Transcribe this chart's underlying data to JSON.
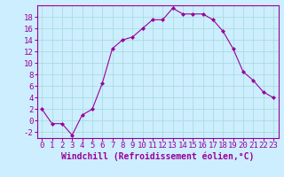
{
  "x": [
    0,
    1,
    2,
    3,
    4,
    5,
    6,
    7,
    8,
    9,
    10,
    11,
    12,
    13,
    14,
    15,
    16,
    17,
    18,
    19,
    20,
    21,
    22,
    23
  ],
  "y": [
    2,
    -0.5,
    -0.5,
    -2.5,
    1,
    2,
    6.5,
    12.5,
    14,
    14.5,
    16,
    17.5,
    17.5,
    19.5,
    18.5,
    18.5,
    18.5,
    17.5,
    15.5,
    12.5,
    8.5,
    7,
    5,
    4
  ],
  "line_color": "#990099",
  "marker": "D",
  "marker_size": 2,
  "bg_color": "#cceeff",
  "grid_color": "#aadddd",
  "xlabel": "Windchill (Refroidissement éolien,°C)",
  "xlabel_color": "#990099",
  "tick_color": "#990099",
  "ylim": [
    -3,
    20
  ],
  "xlim": [
    -0.5,
    23.5
  ],
  "yticks": [
    -2,
    0,
    2,
    4,
    6,
    8,
    10,
    12,
    14,
    16,
    18
  ],
  "xticks": [
    0,
    1,
    2,
    3,
    4,
    5,
    6,
    7,
    8,
    9,
    10,
    11,
    12,
    13,
    14,
    15,
    16,
    17,
    18,
    19,
    20,
    21,
    22,
    23
  ],
  "xtick_labels": [
    "0",
    "1",
    "2",
    "3",
    "4",
    "5",
    "6",
    "7",
    "8",
    "9",
    "10",
    "11",
    "12",
    "13",
    "14",
    "15",
    "16",
    "17",
    "18",
    "19",
    "20",
    "21",
    "22",
    "23"
  ],
  "font_size": 6.5,
  "xlabel_fontsize": 7
}
